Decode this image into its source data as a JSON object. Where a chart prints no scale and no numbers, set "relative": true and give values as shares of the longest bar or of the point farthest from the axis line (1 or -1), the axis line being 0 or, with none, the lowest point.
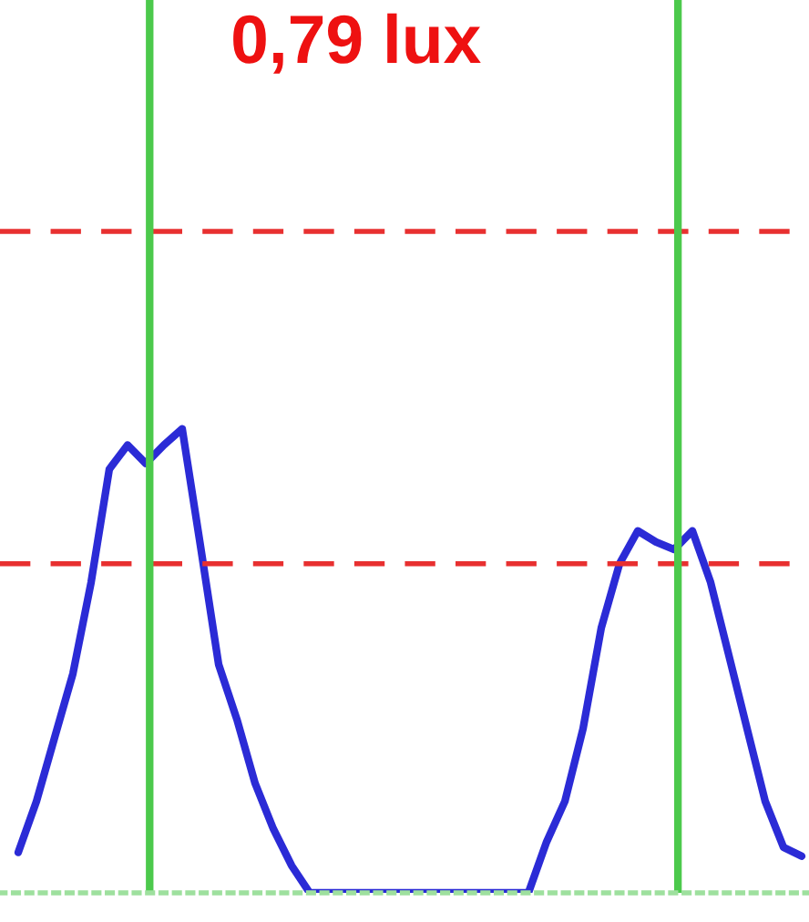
{
  "chart_data": {
    "type": "line",
    "title": "0,79 lux",
    "relative": true,
    "categories": [
      null,
      null,
      null,
      null,
      null,
      null,
      null,
      null,
      null,
      null,
      null,
      null,
      null,
      null,
      null,
      null,
      null,
      null,
      null,
      null,
      null,
      null,
      null,
      null,
      null,
      null,
      null,
      null,
      null,
      null,
      null,
      null,
      null,
      null,
      null,
      null,
      null,
      null,
      null,
      null,
      null,
      null,
      null,
      null
    ],
    "series": [
      {
        "color": "#2b2bd6",
        "values": [
          0.087,
          0.197,
          0.335,
          0.472,
          0.669,
          0.913,
          0.965,
          0.925,
          0.965,
          1.0,
          0.748,
          0.492,
          0.374,
          0.236,
          0.138,
          0.059,
          0,
          0,
          0,
          0,
          0,
          0,
          0,
          0,
          0,
          0,
          0,
          0,
          0,
          0.11,
          0.197,
          0.354,
          0.571,
          0.709,
          0.78,
          0.756,
          0.74,
          0.78,
          0.669,
          0.512,
          0.354,
          0.197,
          0.098,
          0.079
        ]
      }
    ],
    "ref_lines": [
      {
        "axis": "y",
        "value": 1.425,
        "color": "#e83030",
        "line_style": "dashed"
      },
      {
        "axis": "y",
        "value": 0.709,
        "color": "#e83030",
        "line_style": "dashed"
      }
    ],
    "grid": false,
    "legend": false,
    "marker": "none",
    "line_style": "solid"
  }
}
